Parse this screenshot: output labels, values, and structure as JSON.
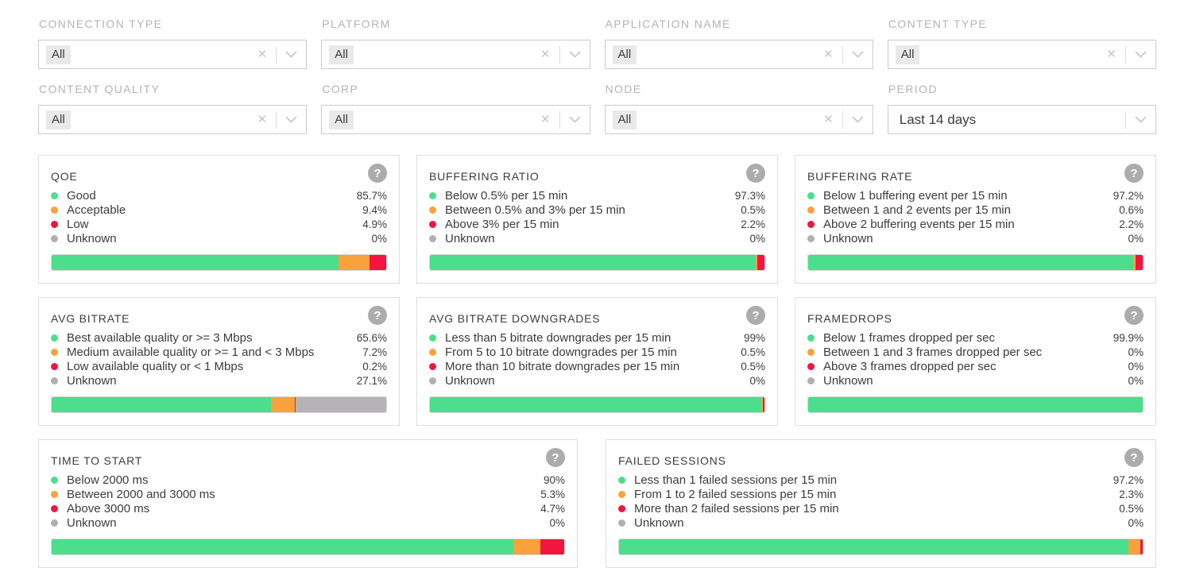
{
  "colors": {
    "good": {
      "dot": "#4ade8d",
      "bar": "#4ade8d"
    },
    "warn": {
      "dot": "#f9a13b",
      "bar": "#f9a13b"
    },
    "bad": {
      "dot": "#f3143f",
      "bar": "#f3143f"
    },
    "unknown": {
      "dot": "#b0b0b0",
      "bar": "#b6b3b6"
    }
  },
  "filters": [
    {
      "label": "CONNECTION TYPE",
      "value": "All",
      "type": "multi"
    },
    {
      "label": "PLATFORM",
      "value": "All",
      "type": "multi"
    },
    {
      "label": "APPLICATION NAME",
      "value": "All",
      "type": "multi"
    },
    {
      "label": "CONTENT TYPE",
      "value": "All",
      "type": "multi"
    },
    {
      "label": "CONTENT QUALITY",
      "value": "All",
      "type": "multi"
    },
    {
      "label": "CORP",
      "value": "All",
      "type": "multi"
    },
    {
      "label": "NODE",
      "value": "All",
      "type": "multi"
    },
    {
      "label": "PERIOD",
      "value": "Last 14 days",
      "type": "select"
    }
  ],
  "cards": [
    {
      "title": "QOE",
      "width": "third",
      "rows": [
        {
          "label": "Good",
          "pct": 85.7,
          "display": "85.7%",
          "color": "good"
        },
        {
          "label": "Acceptable",
          "pct": 9.4,
          "display": "9.4%",
          "color": "warn"
        },
        {
          "label": "Low",
          "pct": 4.9,
          "display": "4.9%",
          "color": "bad"
        },
        {
          "label": "Unknown",
          "pct": 0,
          "display": "0%",
          "color": "unknown"
        }
      ]
    },
    {
      "title": "BUFFERING RATIO",
      "width": "third",
      "rows": [
        {
          "label": "Below 0.5% per 15 min",
          "pct": 97.3,
          "display": "97.3%",
          "color": "good"
        },
        {
          "label": "Between 0.5% and 3% per 15 min",
          "pct": 0.5,
          "display": "0.5%",
          "color": "warn"
        },
        {
          "label": "Above 3% per 15 min",
          "pct": 2.2,
          "display": "2.2%",
          "color": "bad"
        },
        {
          "label": "Unknown",
          "pct": 0,
          "display": "0%",
          "color": "unknown"
        }
      ]
    },
    {
      "title": "BUFFERING RATE",
      "width": "third",
      "rows": [
        {
          "label": "Below 1 buffering event per 15 min",
          "pct": 97.2,
          "display": "97.2%",
          "color": "good"
        },
        {
          "label": "Between 1 and 2 events per 15 min",
          "pct": 0.6,
          "display": "0.6%",
          "color": "warn"
        },
        {
          "label": "Above 2 buffering events per 15 min",
          "pct": 2.2,
          "display": "2.2%",
          "color": "bad"
        },
        {
          "label": "Unknown",
          "pct": 0,
          "display": "0%",
          "color": "unknown"
        }
      ]
    },
    {
      "title": "AVG BITRATE",
      "width": "third",
      "rows": [
        {
          "label": "Best available quality or >= 3 Mbps",
          "pct": 65.6,
          "display": "65.6%",
          "color": "good"
        },
        {
          "label": "Medium available quality or >= 1 and < 3 Mbps",
          "pct": 7.2,
          "display": "7.2%",
          "color": "warn"
        },
        {
          "label": "Low available quality or < 1 Mbps",
          "pct": 0.2,
          "display": "0.2%",
          "color": "bad"
        },
        {
          "label": "Unknown",
          "pct": 27.1,
          "display": "27.1%",
          "color": "unknown"
        }
      ]
    },
    {
      "title": "AVG BITRATE DOWNGRADES",
      "width": "third",
      "rows": [
        {
          "label": "Less than 5 bitrate downgrades per 15 min",
          "pct": 99,
          "display": "99%",
          "color": "good"
        },
        {
          "label": "From 5 to 10 bitrate downgrades per 15 min",
          "pct": 0.5,
          "display": "0.5%",
          "color": "warn"
        },
        {
          "label": "More than 10 bitrate downgrades per 15 min",
          "pct": 0.5,
          "display": "0.5%",
          "color": "bad"
        },
        {
          "label": "Unknown",
          "pct": 0,
          "display": "0%",
          "color": "unknown"
        }
      ]
    },
    {
      "title": "FRAMEDROPS",
      "width": "third",
      "rows": [
        {
          "label": "Below 1 frames dropped per sec",
          "pct": 99.9,
          "display": "99.9%",
          "color": "good"
        },
        {
          "label": "Between 1 and 3 frames dropped per sec",
          "pct": 0,
          "display": "0%",
          "color": "warn"
        },
        {
          "label": "Above 3 frames dropped per sec",
          "pct": 0,
          "display": "0%",
          "color": "bad"
        },
        {
          "label": "Unknown",
          "pct": 0,
          "display": "0%",
          "color": "unknown"
        }
      ]
    },
    {
      "title": "TIME TO START",
      "width": "half",
      "rows": [
        {
          "label": "Below 2000 ms",
          "pct": 90,
          "display": "90%",
          "color": "good"
        },
        {
          "label": "Between 2000 and 3000 ms",
          "pct": 5.3,
          "display": "5.3%",
          "color": "warn"
        },
        {
          "label": "Above 3000 ms",
          "pct": 4.7,
          "display": "4.7%",
          "color": "bad"
        },
        {
          "label": "Unknown",
          "pct": 0,
          "display": "0%",
          "color": "unknown"
        }
      ]
    },
    {
      "title": "FAILED SESSIONS",
      "width": "half",
      "rows": [
        {
          "label": "Less than 1 failed sessions per 15 min",
          "pct": 97.2,
          "display": "97.2%",
          "color": "good"
        },
        {
          "label": "From 1 to 2 failed sessions per 15 min",
          "pct": 2.3,
          "display": "2.3%",
          "color": "warn"
        },
        {
          "label": "More than 2 failed sessions per 15 min",
          "pct": 0.5,
          "display": "0.5%",
          "color": "bad"
        },
        {
          "label": "Unknown",
          "pct": 0,
          "display": "0%",
          "color": "unknown"
        }
      ]
    }
  ],
  "icons": {
    "clear": "✕",
    "help": "?"
  }
}
